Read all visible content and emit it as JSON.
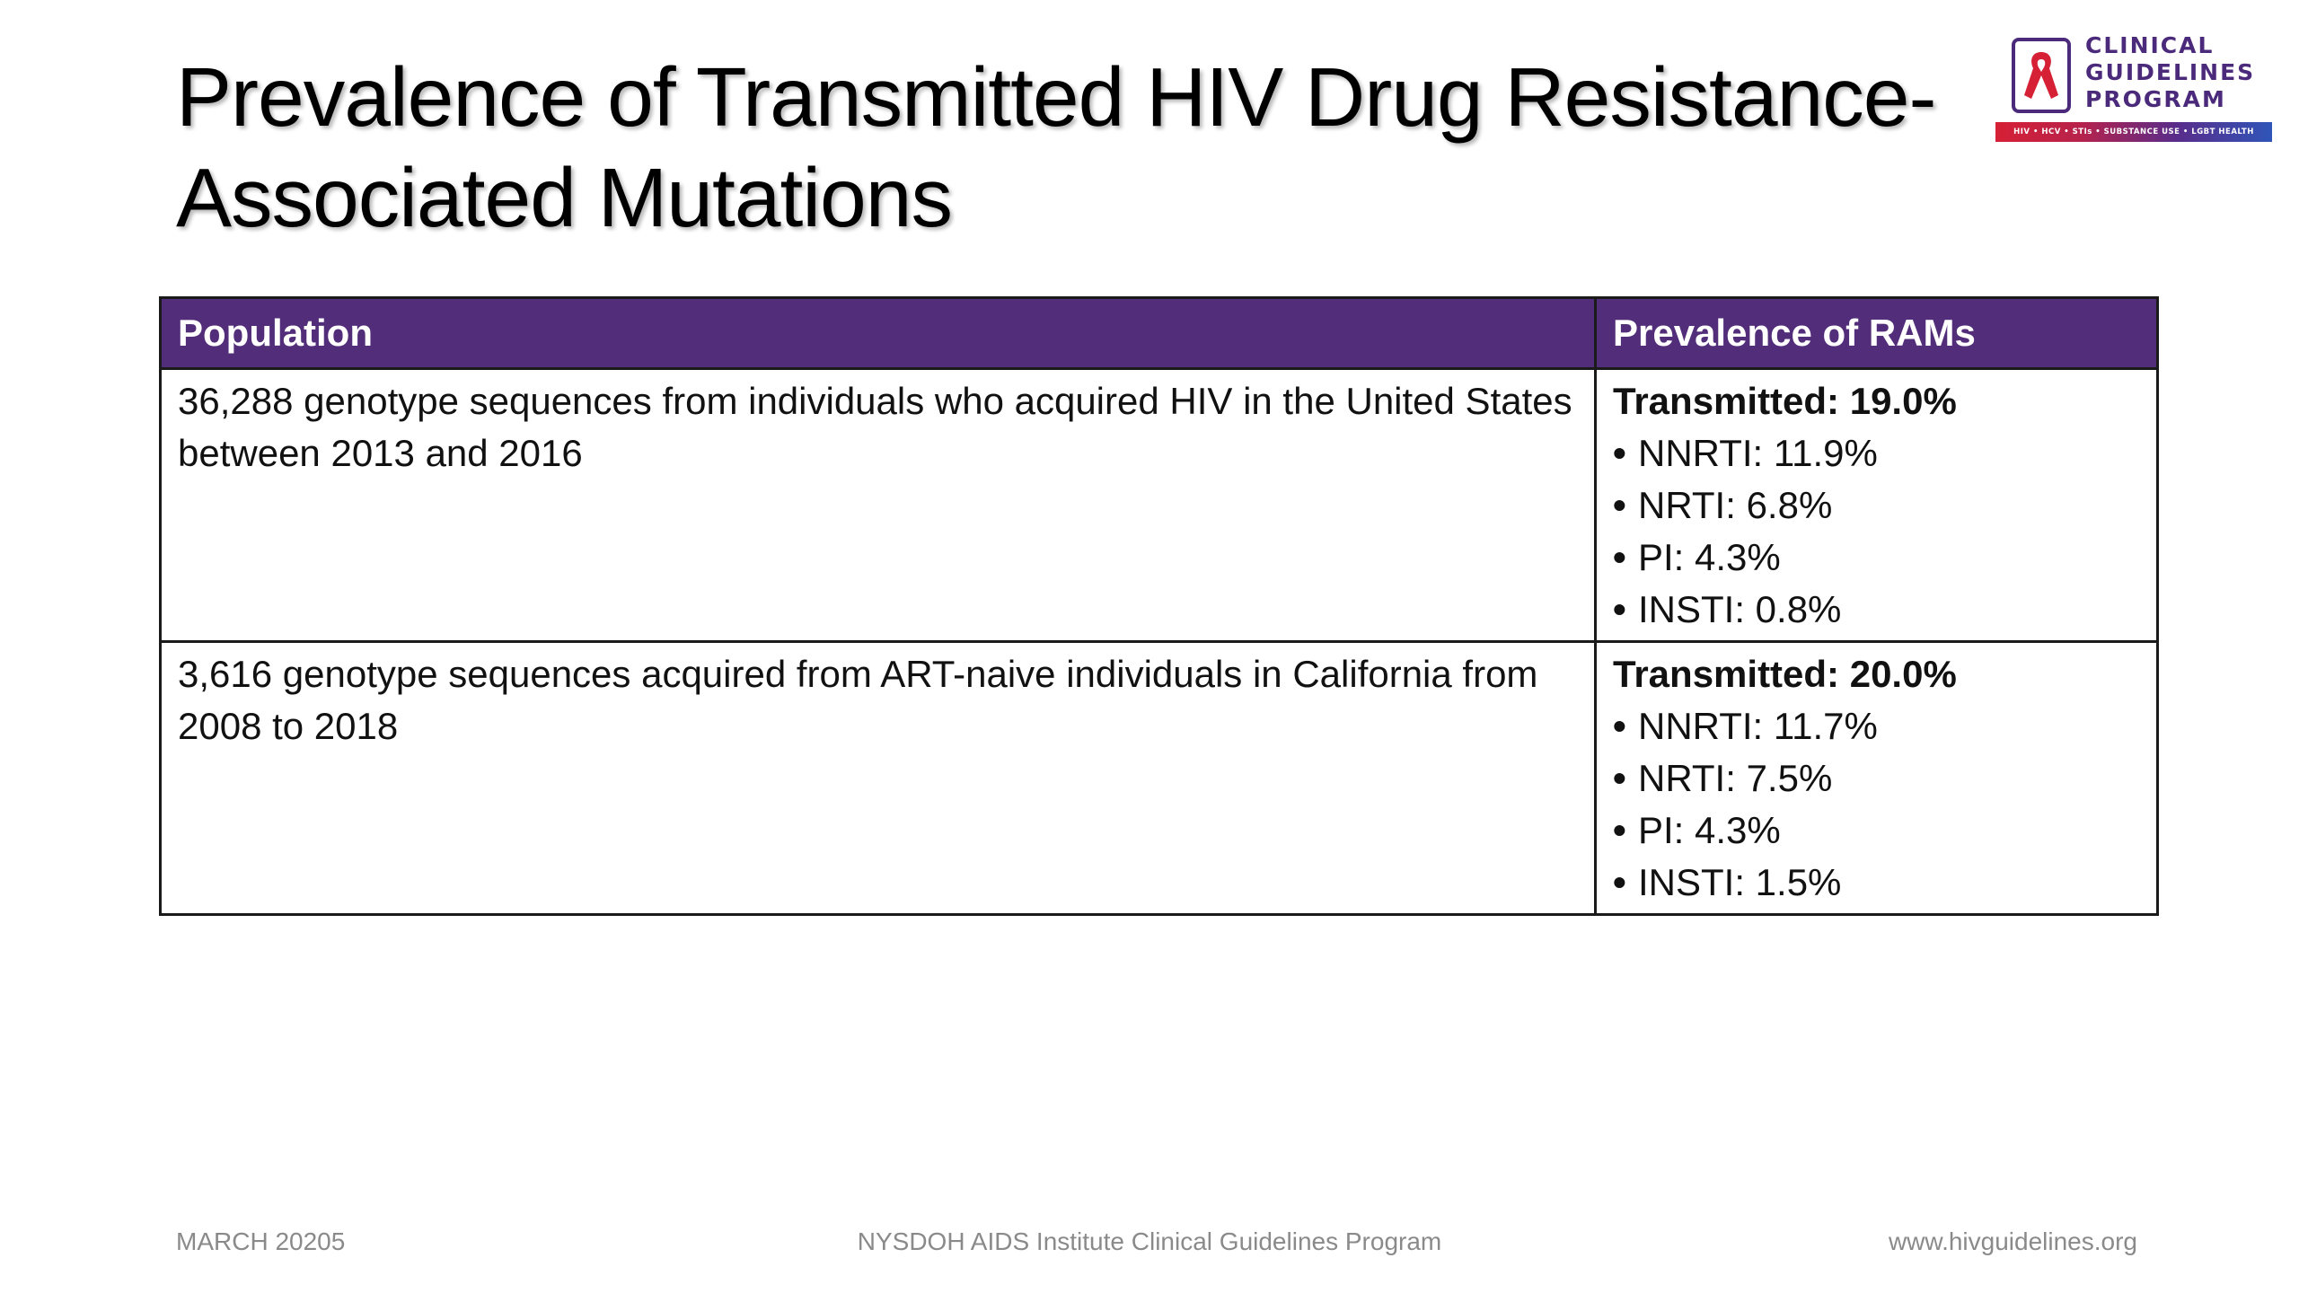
{
  "slide": {
    "title_line1": "Prevalence of Transmitted HIV Drug Resistance-",
    "title_line2": "Associated Mutations"
  },
  "logo": {
    "line1": "CLINICAL",
    "line2": "GUIDELINES",
    "line3": "PROGRAM",
    "strip": "HIV • HCV • STIs • SUBSTANCE USE • LGBT HEALTH",
    "colors": {
      "primary": "#4b2a7b",
      "ribbon": "#d62035"
    }
  },
  "table": {
    "header_color": "#522d7a",
    "headers": [
      "Population",
      "Prevalence of RAMs"
    ],
    "rows": [
      {
        "population": "36,288 genotype sequences from individuals who acquired HIV in the United States between 2013 and 2016",
        "total": "Transmitted: 19.0%",
        "items": [
          "NNRTI: 11.9%",
          "NRTI: 6.8%",
          "PI: 4.3%",
          "INSTI: 0.8%"
        ]
      },
      {
        "population": "3,616 genotype sequences acquired from ART-naive individuals in California from 2008 to 2018",
        "total": "Transmitted: 20.0%",
        "items": [
          "NNRTI: 11.7%",
          "NRTI: 7.5%",
          "PI: 4.3%",
          "INSTI: 1.5%"
        ]
      }
    ],
    "bullet": "•"
  },
  "footer": {
    "date": "MARCH 20205",
    "center": "NYSDOH AIDS Institute Clinical Guidelines Program",
    "url": "www.hivguidelines.org"
  }
}
